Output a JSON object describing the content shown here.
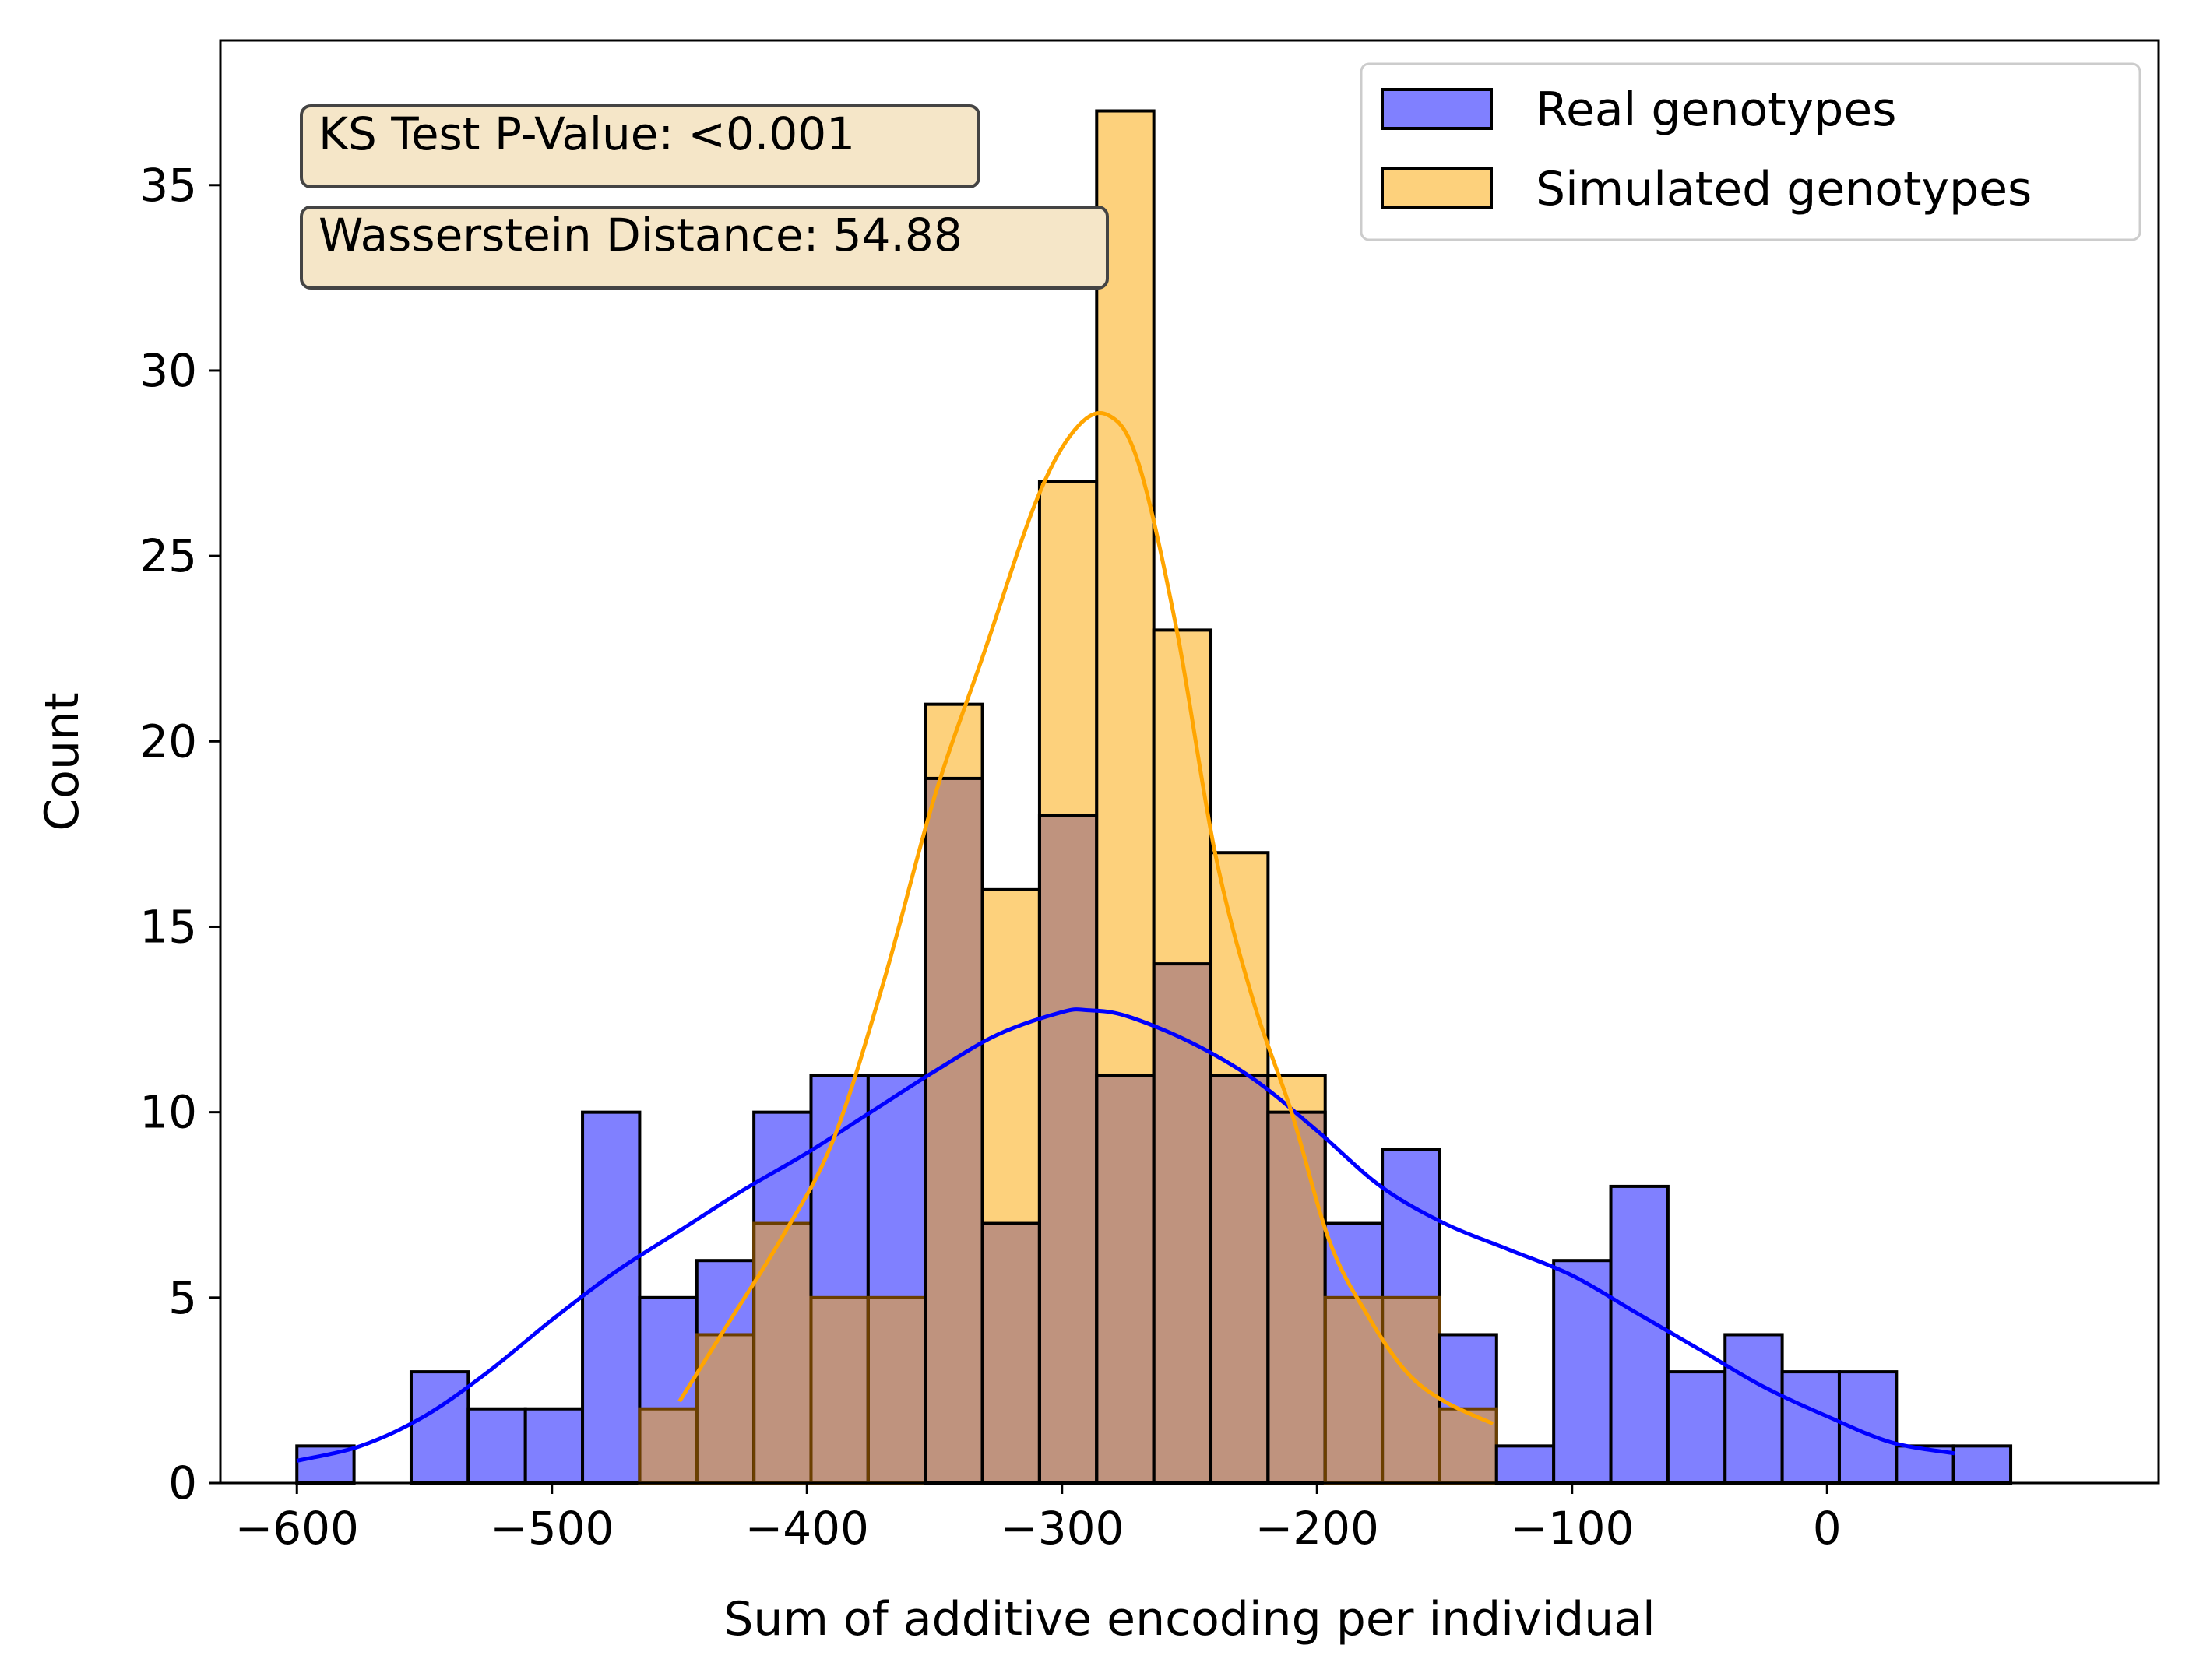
{
  "chart_data": {
    "type": "bar",
    "xlabel": "Sum of additive encoding per individual",
    "ylabel": "Count",
    "xlim": [
      -630,
      130
    ],
    "ylim": [
      0,
      38.9
    ],
    "x_ticks": [
      -600,
      -500,
      -400,
      -300,
      -200,
      -100,
      0
    ],
    "x_tick_labels": [
      "−600",
      "−500",
      "−400",
      "−300",
      "−200",
      "−100",
      "0"
    ],
    "y_ticks": [
      0,
      5,
      10,
      15,
      20,
      25,
      30,
      35
    ],
    "y_tick_labels": [
      "0",
      "5",
      "10",
      "15",
      "20",
      "25",
      "30",
      "35"
    ],
    "bin_edges": [
      -600,
      -577.6,
      -555.2,
      -532.8,
      -510.4,
      -488.0,
      -465.6,
      -443.2,
      -420.8,
      -398.4,
      -376.0,
      -353.6,
      -331.2,
      -308.8,
      -286.4,
      -264.0,
      -241.6,
      -219.2,
      -196.8,
      -174.4,
      -152.0,
      -129.6,
      -107.2,
      -84.8,
      -62.4,
      -40.0,
      -17.6,
      4.8,
      27.2,
      49.6
    ],
    "series": [
      {
        "name": "Real genotypes",
        "values": [
          1,
          0,
          3,
          2,
          2,
          10,
          5,
          6,
          10,
          11,
          11,
          19,
          7,
          18,
          11,
          14,
          11,
          10,
          7,
          9,
          4,
          1,
          6,
          8,
          3,
          4,
          3,
          3,
          1,
          1
        ],
        "kde_x": [
          -600,
          -575,
          -550,
          -525,
          -500,
          -475,
          -450,
          -425,
          -400,
          -375,
          -350,
          -325,
          -300,
          -290,
          -275,
          -250,
          -225,
          -200,
          -175,
          -150,
          -125,
          -100,
          -75,
          -50,
          -25,
          0,
          25,
          50
        ],
        "kde_y": [
          0.6,
          1.0,
          1.8,
          3.0,
          4.4,
          5.7,
          6.8,
          7.9,
          8.9,
          10.0,
          11.1,
          12.1,
          12.7,
          12.75,
          12.6,
          11.9,
          10.9,
          9.5,
          8.0,
          7.0,
          6.3,
          5.6,
          4.6,
          3.6,
          2.6,
          1.8,
          1.1,
          0.8
        ]
      },
      {
        "name": "Simulated genotypes",
        "values": [
          0,
          0,
          0,
          0,
          0,
          0,
          2,
          4,
          7,
          5,
          5,
          21,
          16,
          27,
          37,
          23,
          17,
          11,
          5,
          5,
          2,
          0,
          0,
          0,
          0,
          0,
          0,
          0,
          0,
          0
        ],
        "kde_x": [
          -450,
          -430,
          -410,
          -390,
          -370,
          -350,
          -330,
          -310,
          -295,
          -282,
          -270,
          -255,
          -240,
          -225,
          -210,
          -195,
          -180,
          -165,
          -150,
          -131
        ],
        "kde_y": [
          2.2,
          4.4,
          6.6,
          9.2,
          13.5,
          18.5,
          22.5,
          26.5,
          28.4,
          28.8,
          27.5,
          23.0,
          17.0,
          13.0,
          10.0,
          6.5,
          4.5,
          3.0,
          2.2,
          1.6
        ]
      }
    ],
    "colors": {
      "real_fill": "#8080ff",
      "sim_fill": "#fdd17c",
      "overlap_fill": "#bf937e",
      "real_line": "#0000ff",
      "sim_line": "#ffa500",
      "annotation_bg": "#f5e6c8"
    },
    "legend_position": "top-right",
    "grid": false
  },
  "annotations": {
    "ks": "KS Test P-Value: <0.001",
    "wasserstein": "Wasserstein Distance: 54.88"
  }
}
